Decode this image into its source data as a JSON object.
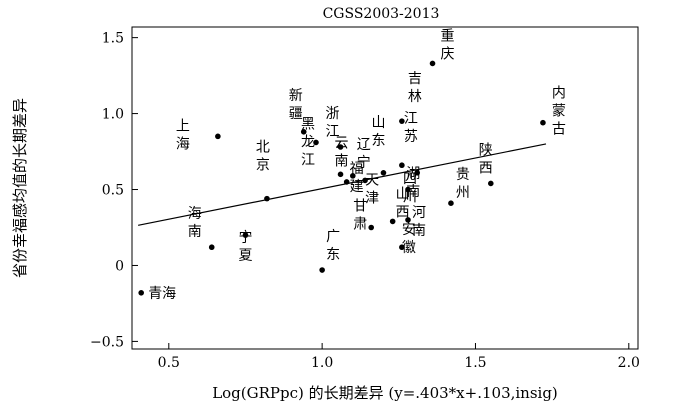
{
  "chart_data": {
    "type": "scatter",
    "title": "CGSS2003-2013",
    "xlabel": "Log(GRPpc) 的长期差异 (y=.403*x+.103,insig)",
    "ylabel": "省份幸福感均值的长期差异",
    "xlim": [
      0.38,
      2.03
    ],
    "ylim": [
      -0.55,
      1.57
    ],
    "xticks": [
      0.5,
      1.0,
      1.5,
      2.0
    ],
    "xtick_labels": [
      "0.5",
      "1.0",
      "1.5",
      "2.0"
    ],
    "yticks": [
      -0.5,
      0,
      0.5,
      1.0,
      1.5
    ],
    "ytick_labels": [
      "−0.5",
      "0",
      "0.5",
      "1.0",
      "1.5"
    ],
    "fit": {
      "slope": 0.403,
      "intercept": 0.103,
      "x_range": [
        0.4,
        1.73
      ]
    },
    "points": [
      {
        "name": "重庆",
        "x": 1.36,
        "y": 1.33
      },
      {
        "name": "内蒙古",
        "x": 1.72,
        "y": 0.94
      },
      {
        "name": "上海",
        "x": 0.66,
        "y": 0.85
      },
      {
        "name": "新疆",
        "x": 0.94,
        "y": 0.88
      },
      {
        "name": "浙江",
        "x": 1.06,
        "y": 0.78
      },
      {
        "name": "吉林",
        "x": 1.26,
        "y": 0.95
      },
      {
        "name": "黑龙江",
        "x": 0.98,
        "y": 0.81
      },
      {
        "name": "北京",
        "x": 0.82,
        "y": 0.44
      },
      {
        "name": "云南",
        "x": 1.06,
        "y": 0.6
      },
      {
        "name": "辽宁",
        "x": 1.1,
        "y": 0.59
      },
      {
        "name": "山东",
        "x": 1.2,
        "y": 0.61
      },
      {
        "name": "江苏",
        "x": 1.26,
        "y": 0.66
      },
      {
        "name": "陕西",
        "x": 1.55,
        "y": 0.54
      },
      {
        "name": "湖南",
        "x": 1.31,
        "y": 0.61
      },
      {
        "name": "贵州",
        "x": 1.42,
        "y": 0.41
      },
      {
        "name": "四川",
        "x": 1.28,
        "y": 0.5
      },
      {
        "name": "天津",
        "x": 1.14,
        "y": 0.56
      },
      {
        "name": "福建",
        "x": 1.08,
        "y": 0.55
      },
      {
        "name": "河南",
        "x": 1.28,
        "y": 0.3
      },
      {
        "name": "甘肃",
        "x": 1.16,
        "y": 0.25
      },
      {
        "name": "山西",
        "x": 1.23,
        "y": 0.29
      },
      {
        "name": "安徽",
        "x": 1.26,
        "y": 0.12
      },
      {
        "name": "宁夏",
        "x": 0.75,
        "y": 0.2
      },
      {
        "name": "海南",
        "x": 0.64,
        "y": 0.12
      },
      {
        "name": "广东",
        "x": 1.0,
        "y": -0.03
      },
      {
        "name": "青海",
        "x": 0.41,
        "y": -0.18
      }
    ]
  }
}
